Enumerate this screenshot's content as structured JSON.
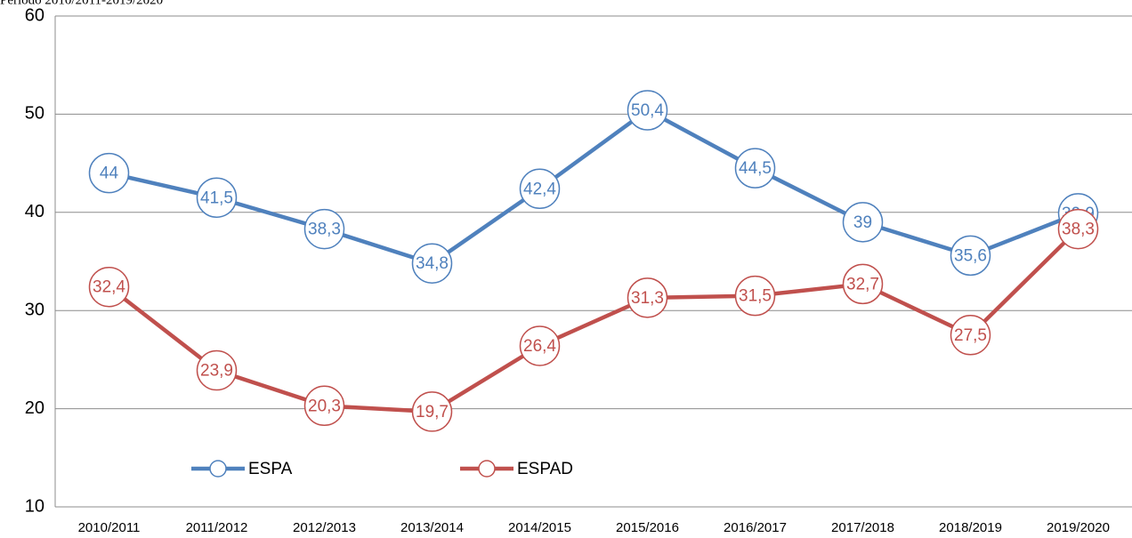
{
  "chart_data": {
    "type": "line",
    "title": "Período 2010/2011-2019/2020",
    "categories": [
      "2010/2011",
      "2011/2012",
      "2012/2013",
      "2013/2014",
      "2014/2015",
      "2015/2016",
      "2016/2017",
      "2017/2018",
      "2018/2019",
      "2019/2020"
    ],
    "series": [
      {
        "name": "ESPA",
        "color": "#4f81bd",
        "values": [
          44,
          41.5,
          38.3,
          34.8,
          42.4,
          50.4,
          44.5,
          39,
          35.6,
          39.9
        ],
        "value_labels": [
          "44",
          "41,5",
          "38,3",
          "34,8",
          "42,4",
          "50,4",
          "44,5",
          "39",
          "35,6",
          "39,9"
        ]
      },
      {
        "name": "ESPAD",
        "color": "#c0504d",
        "values": [
          32.4,
          23.9,
          20.3,
          19.7,
          26.4,
          31.3,
          31.5,
          32.7,
          27.5,
          38.3
        ],
        "value_labels": [
          "32,4",
          "23,9",
          "20,3",
          "19,7",
          "26,4",
          "31,3",
          "31,5",
          "32,7",
          "27,5",
          "38,3"
        ]
      }
    ],
    "ylim": [
      10,
      60
    ],
    "yticks": [
      10,
      20,
      30,
      40,
      50,
      60
    ],
    "grid": true
  }
}
